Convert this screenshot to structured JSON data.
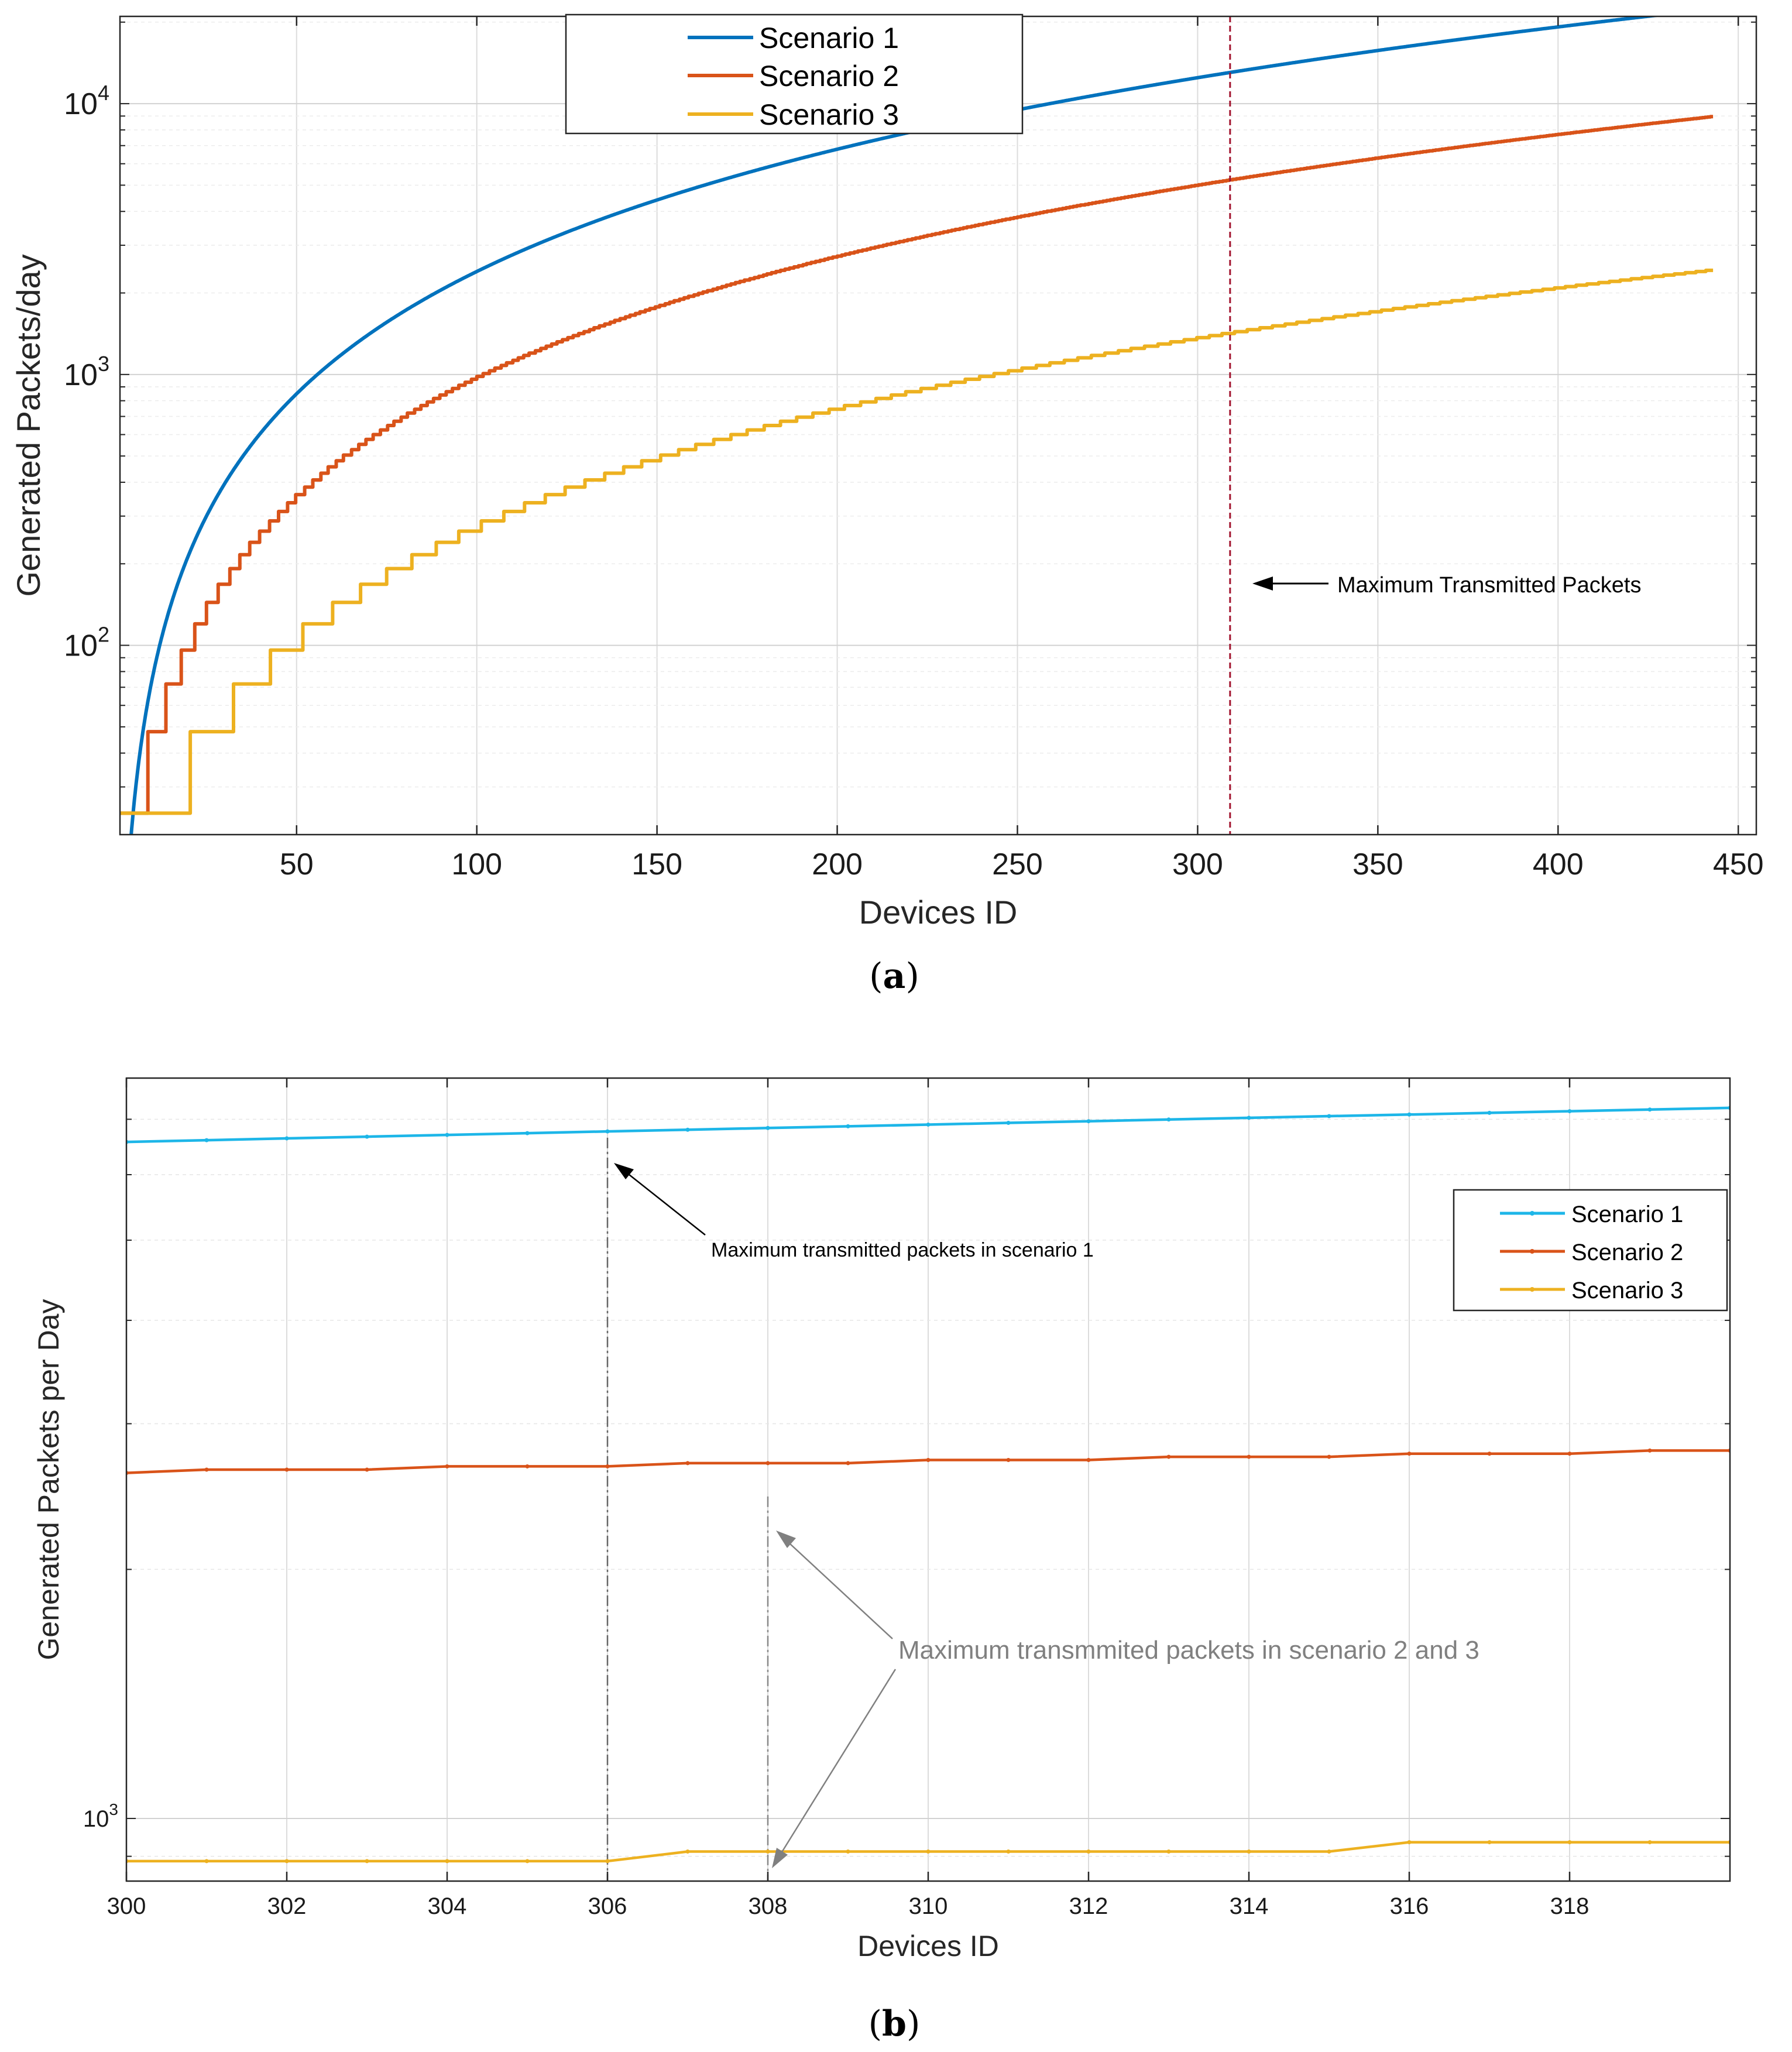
{
  "chart_data": [
    {
      "id": "a",
      "type": "line",
      "caption": "a",
      "xlabel": "Devices ID",
      "ylabel": "Generated Packets/day",
      "xlim": [
        1,
        455
      ],
      "ylim": [
        20,
        21000
      ],
      "yscale": "log",
      "grid": true,
      "legend_position": "top-center",
      "x_ticks": [
        50,
        100,
        150,
        200,
        250,
        300,
        350,
        400,
        450
      ],
      "x_tick_labels": [
        "50",
        "100",
        "150",
        "200",
        "250",
        "300",
        "350",
        "400",
        "450"
      ],
      "y_ticks": [
        100,
        1000,
        10000
      ],
      "y_tick_labels": [
        {
          "base": "10",
          "exp": "2"
        },
        {
          "base": "10",
          "exp": "3"
        },
        {
          "base": "10",
          "exp": "4"
        }
      ],
      "series": [
        {
          "name": "Scenario 1",
          "color": "#0072BD",
          "model": "0.1 * x^1.5 * 24",
          "x_range": [
            1,
            443
          ]
        },
        {
          "name": "Scenario 2",
          "color": "#D95319",
          "model": "24 * floor(0.04 * x^1.5 + 1)",
          "x_range": [
            1,
            443
          ]
        },
        {
          "name": "Scenario 3",
          "color": "#EDB120",
          "model": "24 * floor(0.0108 * x^1.5 + 1)",
          "x_range": [
            1,
            443
          ]
        }
      ],
      "vline": {
        "x": 309,
        "color": "#A2142F"
      },
      "annotation": {
        "text": "Maximum Transmitted Packets",
        "arrow_to": [
          309,
          170
        ]
      }
    },
    {
      "id": "b",
      "type": "line",
      "caption": "b",
      "xlabel": "Devices ID",
      "ylabel": "Generated Packets per Day",
      "xlim": [
        300,
        320
      ],
      "ylim": [
        840,
        7850
      ],
      "yscale": "log",
      "grid": true,
      "legend_position": "right",
      "x_ticks": [
        300,
        302,
        304,
        306,
        308,
        310,
        312,
        314,
        316,
        318
      ],
      "x_tick_labels": [
        "300",
        "302",
        "304",
        "306",
        "308",
        "310",
        "312",
        "314",
        "316",
        "318"
      ],
      "y_ticks": [
        1000
      ],
      "y_tick_labels": [
        {
          "base": "10",
          "exp": "3"
        }
      ],
      "series": [
        {
          "name": "Scenario 1",
          "color": "#1DB6E8",
          "x": [
            300,
            301,
            302,
            303,
            304,
            305,
            306,
            307,
            308,
            309,
            310,
            311,
            312,
            313,
            314,
            315,
            316,
            317,
            318,
            319,
            320
          ],
          "values": [
            6572,
            6604,
            6637,
            6669,
            6702,
            6734,
            6767,
            6799,
            6832,
            6864,
            6897,
            6930,
            6962,
            6995,
            7028,
            7061,
            7093,
            7126,
            7159,
            7192,
            7225
          ]
        },
        {
          "name": "Scenario 2",
          "color": "#D95319",
          "x": [
            300,
            301,
            302,
            303,
            304,
            305,
            306,
            307,
            308,
            309,
            310,
            311,
            312,
            313,
            314,
            315,
            316,
            317,
            318,
            319,
            320
          ],
          "values": [
            2616,
            2640,
            2640,
            2640,
            2664,
            2664,
            2664,
            2688,
            2688,
            2688,
            2712,
            2712,
            2712,
            2736,
            2736,
            2736,
            2760,
            2760,
            2760,
            2784,
            2784
          ]
        },
        {
          "name": "Scenario 3",
          "color": "#EDB120",
          "x": [
            300,
            301,
            302,
            303,
            304,
            305,
            306,
            307,
            308,
            309,
            310,
            311,
            312,
            313,
            314,
            315,
            316,
            317,
            318,
            319,
            320
          ],
          "values": [
            888,
            888,
            888,
            888,
            888,
            888,
            888,
            912,
            912,
            912,
            912,
            912,
            912,
            912,
            912,
            912,
            936,
            936,
            936,
            936,
            936
          ]
        }
      ],
      "vlines": [
        {
          "x": 306,
          "y_top": 6650,
          "color": "#666666"
        },
        {
          "x": 308,
          "y_top": 2450,
          "color": "#888888"
        }
      ],
      "annotations": [
        {
          "text": "Maximum transmitted packets in scenario 1",
          "arrow_to": [
            306,
            6650
          ],
          "color": "#000000"
        },
        {
          "text": "Maximum transmmited packets in scenario 2 and 3",
          "arrow_to": [
            [
              308,
              2450
            ],
            [
              308,
              912
            ]
          ],
          "color": "#808080"
        }
      ]
    }
  ]
}
